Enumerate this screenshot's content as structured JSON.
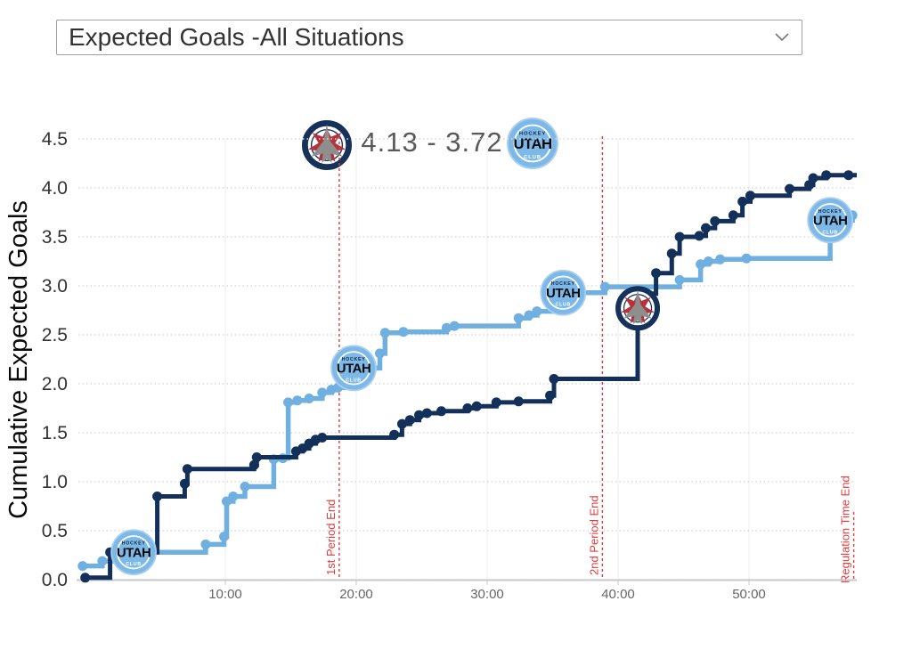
{
  "dropdown": {
    "value": "Expected Goals -All Situations"
  },
  "header": {
    "score": "4.13 - 3.72",
    "away_score": 4.13,
    "home_score": 3.72,
    "utah_logo_text": {
      "top": "HOCKEY",
      "middle": "UTAH",
      "bottom": "CLUB"
    }
  },
  "chart_data": {
    "type": "line",
    "subtype": "cumulative step (step-after)",
    "title": "Expected Goals -All Situations",
    "xlabel": "",
    "ylabel": "Cumulative Expected Goals",
    "ylim": [
      0,
      4.5
    ],
    "y_tick_step": 0.5,
    "y_tick_labels": [
      "0.0",
      "0.5",
      "1.0",
      "1.5",
      "2.0",
      "2.5",
      "3.0",
      "3.5",
      "4.0",
      "4.5"
    ],
    "x_tick_minutes": [
      10,
      20,
      30,
      40,
      50
    ],
    "x_tick_labels": [
      "10:00",
      "20:00",
      "30:00",
      "40:00",
      "50:00"
    ],
    "xlim_minutes": [
      -1.2,
      58.2
    ],
    "grid": true,
    "legend_position": "none",
    "event_lines": [
      {
        "label": "1st Period End",
        "minute": 18.7,
        "full_height": true
      },
      {
        "label": "2nd Period End",
        "minute": 38.8,
        "full_height": true
      },
      {
        "label": "Regulation Time End",
        "minute": 58.0,
        "full_height": false
      }
    ],
    "series": [
      {
        "name": "WPG",
        "color": "#12305a",
        "final_xg": 4.13,
        "points": [
          [
            -0.7,
            0.02
          ],
          [
            1.2,
            0.28
          ],
          [
            4.8,
            0.85
          ],
          [
            6.9,
            0.98
          ],
          [
            7.1,
            1.13
          ],
          [
            12.2,
            1.17
          ],
          [
            12.4,
            1.25
          ],
          [
            15.4,
            1.31
          ],
          [
            15.9,
            1.34
          ],
          [
            16.4,
            1.39
          ],
          [
            16.9,
            1.43
          ],
          [
            17.4,
            1.45
          ],
          [
            22.9,
            1.48
          ],
          [
            23.5,
            1.59
          ],
          [
            24.1,
            1.63
          ],
          [
            24.8,
            1.68
          ],
          [
            25.4,
            1.7
          ],
          [
            26.5,
            1.72
          ],
          [
            28.5,
            1.75
          ],
          [
            29.2,
            1.77
          ],
          [
            30.7,
            1.81
          ],
          [
            32.4,
            1.82
          ],
          [
            34.8,
            1.88
          ],
          [
            35.1,
            2.05
          ],
          [
            41.5,
            2.77
          ],
          [
            42.0,
            2.92
          ],
          [
            42.9,
            3.13
          ],
          [
            44.1,
            3.33
          ],
          [
            44.7,
            3.5
          ],
          [
            46.2,
            3.51
          ],
          [
            46.7,
            3.59
          ],
          [
            47.4,
            3.66
          ],
          [
            48.8,
            3.72
          ],
          [
            49.5,
            3.86
          ],
          [
            50.1,
            3.92
          ],
          [
            53.1,
            3.99
          ],
          [
            54.6,
            4.03
          ],
          [
            54.9,
            4.1
          ],
          [
            55.9,
            4.13
          ],
          [
            57.6,
            4.13
          ]
        ]
      },
      {
        "name": "UTA",
        "color": "#6fb0e0",
        "final_xg": 3.72,
        "points": [
          [
            -0.9,
            0.14
          ],
          [
            0.6,
            0.19
          ],
          [
            3.0,
            0.28
          ],
          [
            8.5,
            0.36
          ],
          [
            9.9,
            0.44
          ],
          [
            10.1,
            0.8
          ],
          [
            10.6,
            0.85
          ],
          [
            11.5,
            0.95
          ],
          [
            13.7,
            1.23
          ],
          [
            14.4,
            1.24
          ],
          [
            14.8,
            1.81
          ],
          [
            15.5,
            1.83
          ],
          [
            16.4,
            1.85
          ],
          [
            17.4,
            1.91
          ],
          [
            18.1,
            1.94
          ],
          [
            18.6,
            1.96
          ],
          [
            19.8,
            2.16
          ],
          [
            21.8,
            2.31
          ],
          [
            22.2,
            2.52
          ],
          [
            23.6,
            2.53
          ],
          [
            26.9,
            2.57
          ],
          [
            27.5,
            2.59
          ],
          [
            32.4,
            2.67
          ],
          [
            33.2,
            2.7
          ],
          [
            33.8,
            2.74
          ],
          [
            35.8,
            2.93
          ],
          [
            39.0,
            2.99
          ],
          [
            44.7,
            3.06
          ],
          [
            46.3,
            3.22
          ],
          [
            46.9,
            3.25
          ],
          [
            47.8,
            3.27
          ],
          [
            49.8,
            3.28
          ],
          [
            56.2,
            3.67
          ],
          [
            57.9,
            3.72
          ]
        ]
      }
    ],
    "goal_markers": [
      {
        "team": "UTA",
        "minute": 3.0,
        "xg": 0.28
      },
      {
        "team": "UTA",
        "minute": 19.8,
        "xg": 2.16
      },
      {
        "team": "UTA",
        "minute": 35.8,
        "xg": 2.93
      },
      {
        "team": "WPG",
        "minute": 41.5,
        "xg": 2.77
      },
      {
        "team": "UTA",
        "minute": 56.2,
        "xg": 3.67
      }
    ],
    "colors": {
      "event_line": "#e03c3c",
      "grid_dotted": "#d9d9d9",
      "grid_vertical": "#ececec",
      "axis": "#c9c9c9",
      "tick_label": "#666666",
      "y_tick_label": "#333333",
      "utah_logo_blue": "#7db9e8",
      "jets_navy": "#16325b",
      "jets_leaf_red": "#b5323a",
      "jets_jet_gray": "#8e8e8e"
    }
  }
}
